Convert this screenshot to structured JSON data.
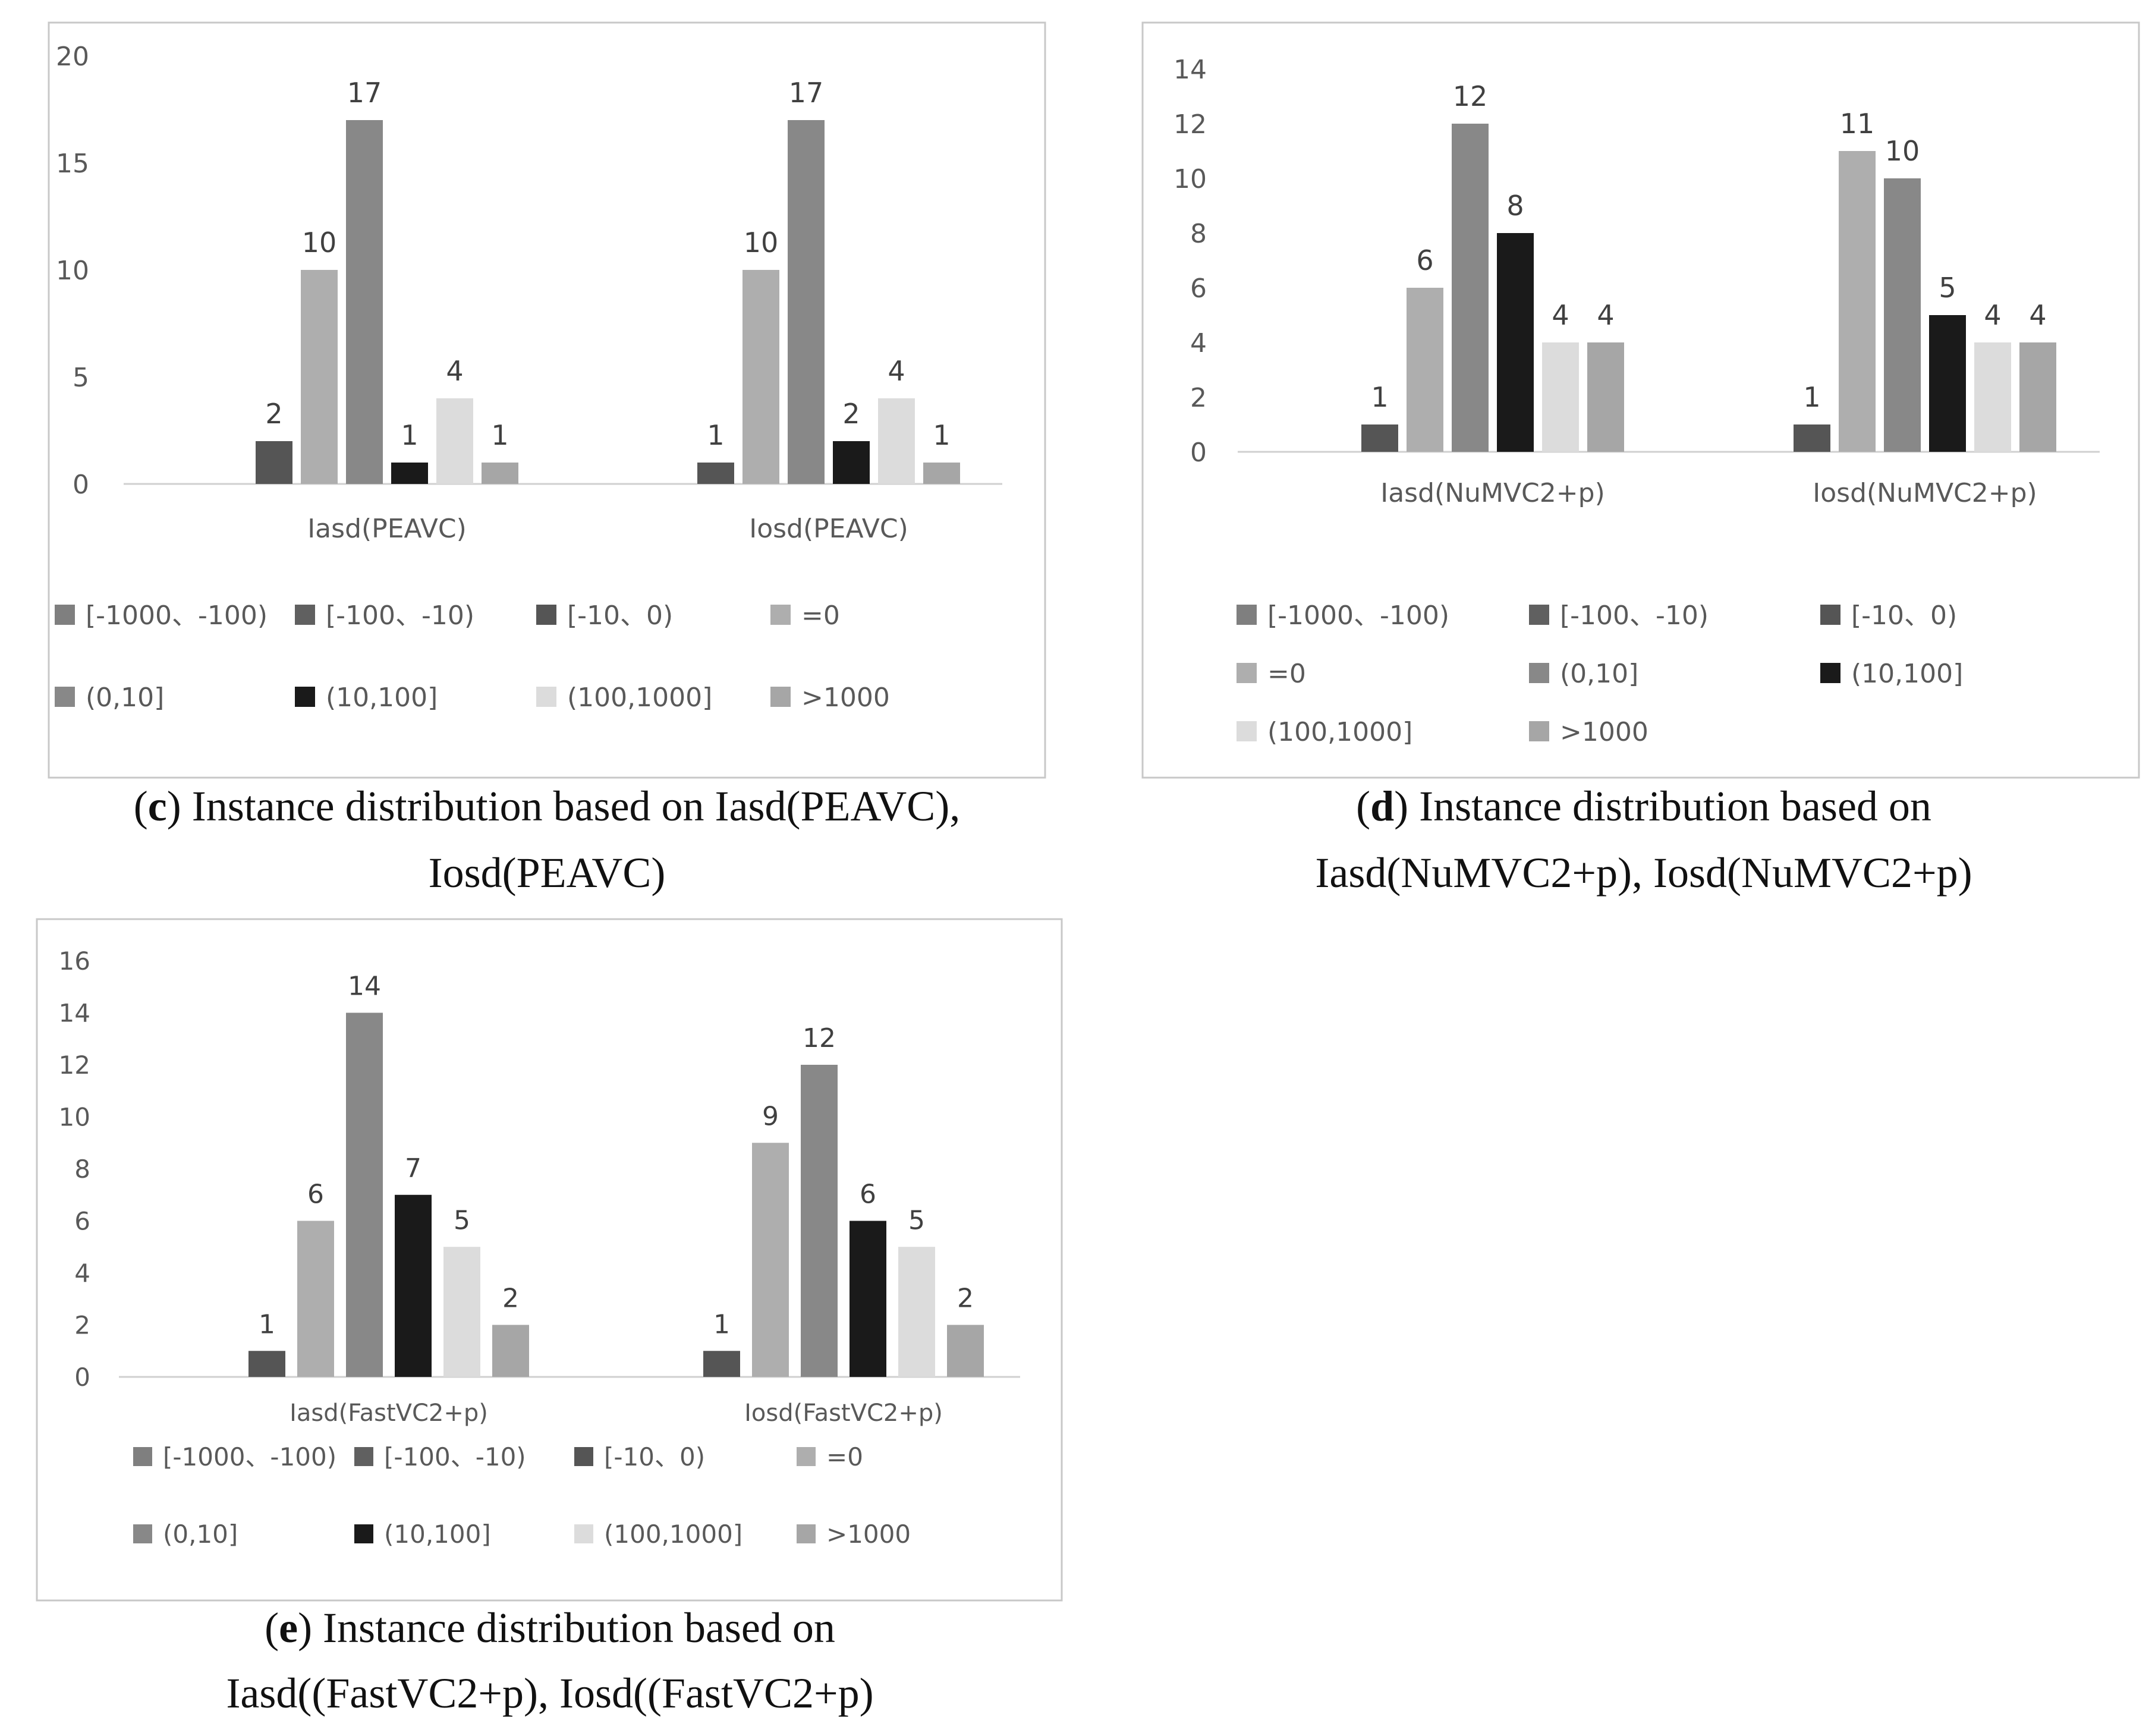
{
  "chart_data": [
    {
      "type": "bar",
      "panel_letter": "c",
      "caption": ") Instance distribution based on Iasd(PEAVC),",
      "caption_line2": "Iosd(PEAVC)",
      "categories": [
        "Iasd(PEAVC)",
        "Iosd(PEAVC)"
      ],
      "series": [
        {
          "name": "[-1000、-100)",
          "color": "#7f7f7f",
          "values": [
            0,
            0
          ]
        },
        {
          "name": "[-100、-10)",
          "color": "#606060",
          "values": [
            0,
            0
          ]
        },
        {
          "name": "[-10、0)",
          "color": "#555555",
          "values": [
            2,
            1
          ]
        },
        {
          "name": "=0",
          "color": "#aeaeae",
          "values": [
            10,
            10
          ]
        },
        {
          "name": "(0,10]",
          "color": "#888888",
          "values": [
            17,
            17
          ]
        },
        {
          "name": "(10,100]",
          "color": "#1a1a1a",
          "values": [
            1,
            2
          ]
        },
        {
          "name": "(100,1000]",
          "color": "#dcdcdc",
          "values": [
            4,
            4
          ]
        },
        {
          "name": ">1000",
          "color": "#a6a6a6",
          "values": [
            1,
            1
          ]
        }
      ],
      "yticks": [
        "0",
        "5",
        "10",
        "15",
        "20"
      ],
      "ylim": [
        0,
        20
      ],
      "data_labels": [
        [
          "2",
          "10",
          "17",
          "1",
          "4",
          "1"
        ],
        [
          "1",
          "10",
          "17",
          "2",
          "4",
          "1"
        ]
      ],
      "legend": "bottom",
      "grid": false
    },
    {
      "type": "bar",
      "panel_letter": "d",
      "caption": ") Instance distribution based on",
      "caption_line2": "Iasd(NuMVC2+p), Iosd(NuMVC2+p)",
      "categories": [
        "Iasd(NuMVC2+p)",
        "Iosd(NuMVC2+p)"
      ],
      "series": [
        {
          "name": "[-1000、-100)",
          "color": "#7f7f7f",
          "values": [
            0,
            0
          ]
        },
        {
          "name": "[-100、-10)",
          "color": "#606060",
          "values": [
            0,
            0
          ]
        },
        {
          "name": "[-10、0)",
          "color": "#555555",
          "values": [
            1,
            1
          ]
        },
        {
          "name": "=0",
          "color": "#aeaeae",
          "values": [
            6,
            11
          ]
        },
        {
          "name": "(0,10]",
          "color": "#888888",
          "values": [
            12,
            10
          ]
        },
        {
          "name": "(10,100]",
          "color": "#1a1a1a",
          "values": [
            8,
            5
          ]
        },
        {
          "name": "(100,1000]",
          "color": "#dcdcdc",
          "values": [
            4,
            4
          ]
        },
        {
          "name": ">1000",
          "color": "#a6a6a6",
          "values": [
            4,
            4
          ]
        }
      ],
      "yticks": [
        "0",
        "2",
        "4",
        "6",
        "8",
        "10",
        "12",
        "14"
      ],
      "ylim": [
        0,
        14
      ],
      "data_labels": [
        [
          "1",
          "6",
          "12",
          "8",
          "4",
          "4"
        ],
        [
          "1",
          "11",
          "10",
          "5",
          "4",
          "4"
        ]
      ],
      "legend": "bottom",
      "grid": false
    },
    {
      "type": "bar",
      "panel_letter": "e",
      "caption": ") Instance distribution based on",
      "caption_line2": "Iasd((FastVC2+p), Iosd((FastVC2+p)",
      "categories": [
        "Iasd(FastVC2+p)",
        "Iosd(FastVC2+p)"
      ],
      "series": [
        {
          "name": "[-1000、-100)",
          "color": "#7f7f7f",
          "values": [
            0,
            0
          ]
        },
        {
          "name": "[-100、-10)",
          "color": "#606060",
          "values": [
            0,
            0
          ]
        },
        {
          "name": "[-10、0)",
          "color": "#555555",
          "values": [
            1,
            1
          ]
        },
        {
          "name": "=0",
          "color": "#aeaeae",
          "values": [
            6,
            9
          ]
        },
        {
          "name": "(0,10]",
          "color": "#888888",
          "values": [
            14,
            12
          ]
        },
        {
          "name": "(10,100]",
          "color": "#1a1a1a",
          "values": [
            7,
            6
          ]
        },
        {
          "name": "(100,1000]",
          "color": "#dcdcdc",
          "values": [
            5,
            5
          ]
        },
        {
          "name": ">1000",
          "color": "#a6a6a6",
          "values": [
            2,
            2
          ]
        }
      ],
      "yticks": [
        "0",
        "2",
        "4",
        "6",
        "8",
        "10",
        "12",
        "14",
        "16"
      ],
      "ylim": [
        0,
        16
      ],
      "data_labels": [
        [
          "1",
          "6",
          "14",
          "7",
          "5",
          "2"
        ],
        [
          "1",
          "9",
          "12",
          "6",
          "5",
          "2"
        ]
      ],
      "legend": "bottom",
      "grid": false
    }
  ]
}
